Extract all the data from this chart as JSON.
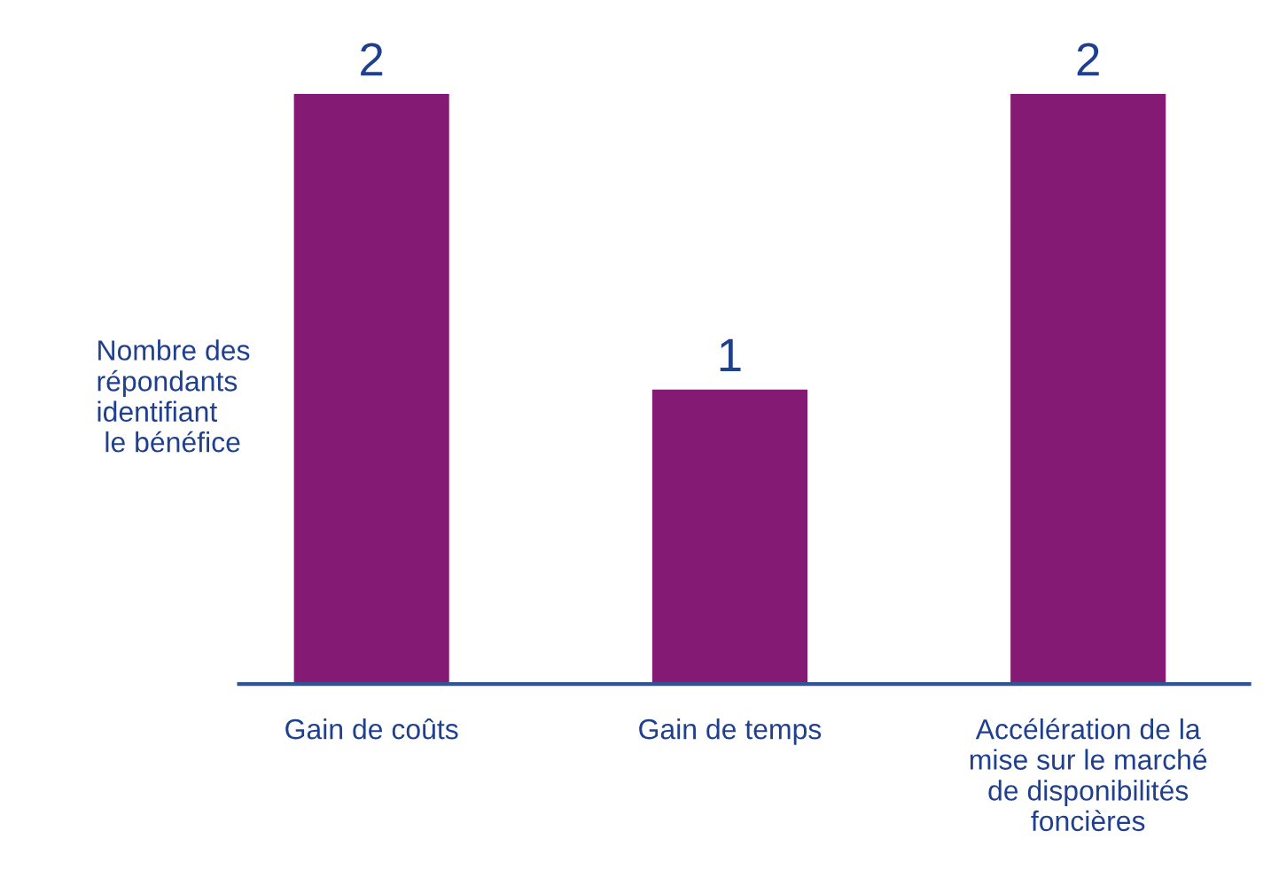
{
  "chart_data": {
    "type": "bar",
    "ylabel": "Nombre des\nrépondants\nidentifiant\n le bénéfice",
    "categories": [
      "Gain de coûts",
      "Gain de temps",
      "Accélération de la\nmise sur le marché\nde disponibilités\nfoncières"
    ],
    "values": [
      2,
      1,
      2
    ],
    "color": "#841a73",
    "data_labels": true,
    "grid": false,
    "legend": false
  }
}
